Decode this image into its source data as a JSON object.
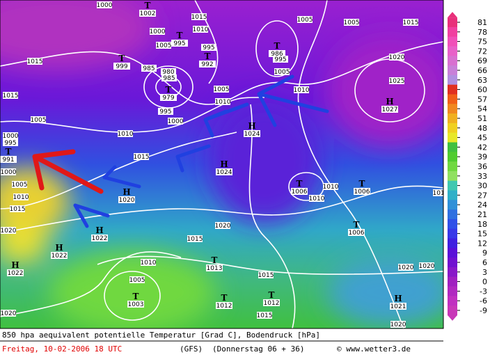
{
  "map": {
    "centers": [
      {
        "symbol": "T",
        "value": 1002
      },
      {
        "symbol": "T",
        "value": 995
      },
      {
        "symbol": "T",
        "value": 999
      },
      {
        "symbol": "T",
        "value": 992
      },
      {
        "symbol": "T",
        "value": 986
      },
      {
        "symbol": "T",
        "value": 979
      },
      {
        "symbol": "H",
        "value": 1027
      },
      {
        "symbol": "H",
        "value": 1024
      },
      {
        "symbol": "T",
        "value": 991
      },
      {
        "symbol": "H",
        "value": 1024
      },
      {
        "symbol": "H",
        "value": 1020
      },
      {
        "symbol": "T",
        "value": 1006
      },
      {
        "symbol": "T",
        "value": 1006
      },
      {
        "symbol": "T",
        "value": 1006
      },
      {
        "symbol": "H",
        "value": 1022
      },
      {
        "symbol": "H",
        "value": 1022
      },
      {
        "symbol": "H",
        "value": 1022
      },
      {
        "symbol": "T",
        "value": 1013
      },
      {
        "symbol": "T",
        "value": 1003
      },
      {
        "symbol": "T",
        "value": 1012
      },
      {
        "symbol": "T",
        "value": 1012
      },
      {
        "symbol": "H",
        "value": 1021
      }
    ],
    "isobar_labels": [
      1000,
      1015,
      1005,
      1005,
      1015,
      1000,
      1005,
      995,
      1010,
      1015,
      1020,
      985,
      980,
      985,
      995,
      1005,
      1025,
      1005,
      1010,
      1010,
      995,
      1000,
      1005,
      1010,
      1015,
      1000,
      995,
      1000,
      1005,
      1010,
      1015,
      1010,
      1010,
      1020,
      1015,
      1020,
      1010,
      1005,
      1015,
      1020,
      1020,
      1015,
      1020,
      1020,
      1015,
      1015
    ]
  },
  "colorbar": {
    "ticks": [
      81,
      78,
      75,
      72,
      69,
      66,
      63,
      60,
      57,
      54,
      51,
      48,
      45,
      42,
      39,
      36,
      33,
      30,
      27,
      24,
      21,
      18,
      15,
      12,
      9,
      6,
      3,
      0,
      -3,
      -6,
      -9
    ],
    "colors": [
      "#e8307a",
      "#f040a0",
      "#f050b8",
      "#e860c8",
      "#d870d0",
      "#c880d8",
      "#b090e0",
      "#e03020",
      "#f06018",
      "#f08820",
      "#f0b020",
      "#f0d020",
      "#e8e828",
      "#40c040",
      "#50cc30",
      "#70d840",
      "#90e060",
      "#40c8b0",
      "#30b0c8",
      "#3090d8",
      "#3070e0",
      "#3050e8",
      "#3838e8",
      "#4020e0",
      "#5a10d8",
      "#7010d0",
      "#8818c8",
      "#a020c0",
      "#b028c0",
      "#c030c0",
      "#c838b8"
    ]
  },
  "footer": {
    "title": "850 hpa aequivalent potentielle Temperatur [Grad C], Bodendruck [hPa]",
    "date": "Freitag, 10-02-2006  18 UTC",
    "model": "(GFS)",
    "run": "(Donnerstag 06 + 36)",
    "copyright": "© www.wetter3.de"
  }
}
